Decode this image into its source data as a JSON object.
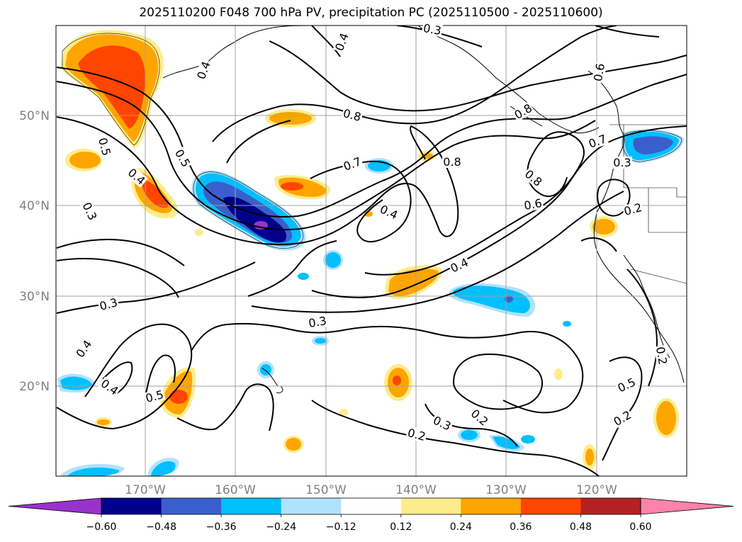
{
  "title": "2025110200 F048 700 hPa PV, precipitation PC (2025110500 - 2025110600)",
  "map": {
    "lon_range": [
      -180,
      -110
    ],
    "lat_range": [
      10,
      60
    ],
    "lon_ticks": [
      "170°W",
      "160°W",
      "150°W",
      "140°W",
      "130°W",
      "120°W"
    ],
    "lat_ticks": [
      "50°N",
      "40°N",
      "30°N",
      "20°N"
    ],
    "gridlines": true
  },
  "contour_labels": [
    "0.4",
    "0.3",
    "0.8",
    "0.5",
    "0.5",
    "0.4",
    "0.3",
    "0.7",
    "0.8",
    "0.8",
    "0.7",
    "0.3",
    "0.2",
    "0.6",
    "0.4",
    "0.4",
    "0.8",
    "0.3",
    "0.4",
    "0.4",
    "0.5",
    "0.3",
    "0.2",
    "0.2",
    "0.3",
    "0.5",
    "0.2",
    "0.2",
    "0.4",
    "0.6"
  ],
  "colorbar": {
    "ticks": [
      "−0.60",
      "−0.48",
      "−0.36",
      "−0.24",
      "−0.12",
      "0.12",
      "0.24",
      "0.36",
      "0.48",
      "0.60"
    ],
    "colors": [
      "#9932CC",
      "#00008B",
      "#3A5FCD",
      "#00BFFF",
      "#B0E2FF",
      "#FFFFFF",
      "#FFEC8B",
      "#FFA500",
      "#FF4500",
      "#B22222",
      "#FF82AB"
    ]
  }
}
